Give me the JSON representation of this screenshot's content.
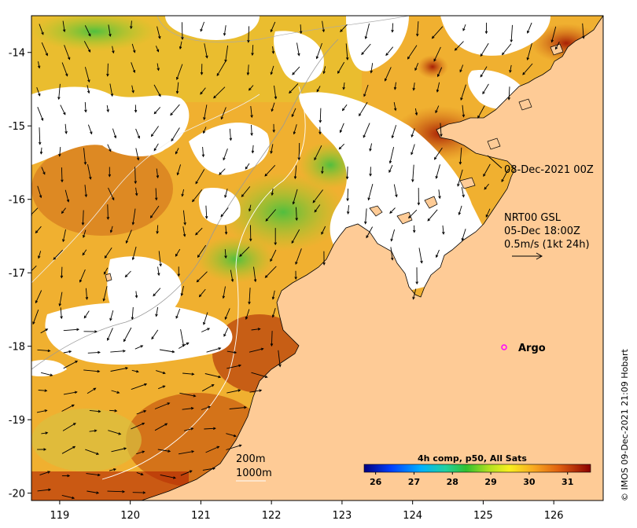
{
  "map": {
    "lon_range": [
      118.6,
      126.7
    ],
    "lat_range": [
      -20.1,
      -13.5
    ],
    "x_ticks": [
      "119",
      "120",
      "121",
      "122",
      "123",
      "124",
      "125",
      "126"
    ],
    "y_ticks": [
      "-14",
      "-15",
      "-16",
      "-17",
      "-18",
      "-19",
      "-20"
    ]
  },
  "annotations": {
    "date_label": "08-Dec-2021 00Z",
    "current_title": "NRT00 GSL",
    "current_time": "05-Dec 18:00Z",
    "current_scale": "0.5m/s (1kt 24h)",
    "argo_label": "Argo"
  },
  "contours": {
    "label_200m": "200m",
    "label_1000m": "1000m"
  },
  "colorbar": {
    "title": "4h comp, p50, All Sats",
    "ticks": [
      "26",
      "27",
      "28",
      "29",
      "30",
      "31"
    ]
  },
  "copyright": "© IMOS 09-Dec-2021 21:09 Hobart",
  "colors": {
    "land": "#fecb96",
    "no_data": "#ffffff",
    "argo": "#ff00ff"
  }
}
